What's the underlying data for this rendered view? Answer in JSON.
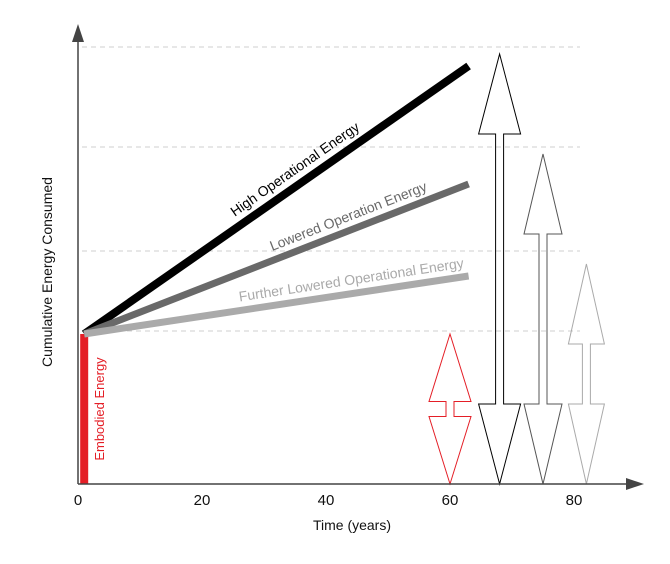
{
  "chart_data": {
    "type": "line",
    "title": "",
    "xlabel": "Time (years)",
    "ylabel": "Cumulative Energy Consumed",
    "xlim": [
      0,
      100
    ],
    "x_ticks": [
      0,
      20,
      40,
      60,
      80
    ],
    "grid": "horizontal dashed",
    "embodied": {
      "name": "Embodied Energy",
      "x": 1,
      "y": 150,
      "color": "#e41e26"
    },
    "series": [
      {
        "name": "High Operational Energy",
        "color": "#000000",
        "x": [
          1,
          63
        ],
        "y": [
          150,
          418
        ]
      },
      {
        "name": "Lowered Operation Energy",
        "color": "#696969",
        "x": [
          1,
          63
        ],
        "y": [
          150,
          300
        ]
      },
      {
        "name": "Further Lowered Operational Energy",
        "color": "#aaaaaa",
        "x": [
          1,
          63
        ],
        "y": [
          150,
          208
        ]
      }
    ],
    "arrows": [
      {
        "color": "#e41e26",
        "x": 60,
        "y": [
          0,
          150
        ]
      },
      {
        "color": "#000000",
        "x": 68,
        "y": [
          0,
          430
        ]
      },
      {
        "color": "#555555",
        "x": 75,
        "y": [
          0,
          330
        ]
      },
      {
        "color": "#aaaaaa",
        "x": 82,
        "y": [
          0,
          220
        ]
      }
    ]
  }
}
